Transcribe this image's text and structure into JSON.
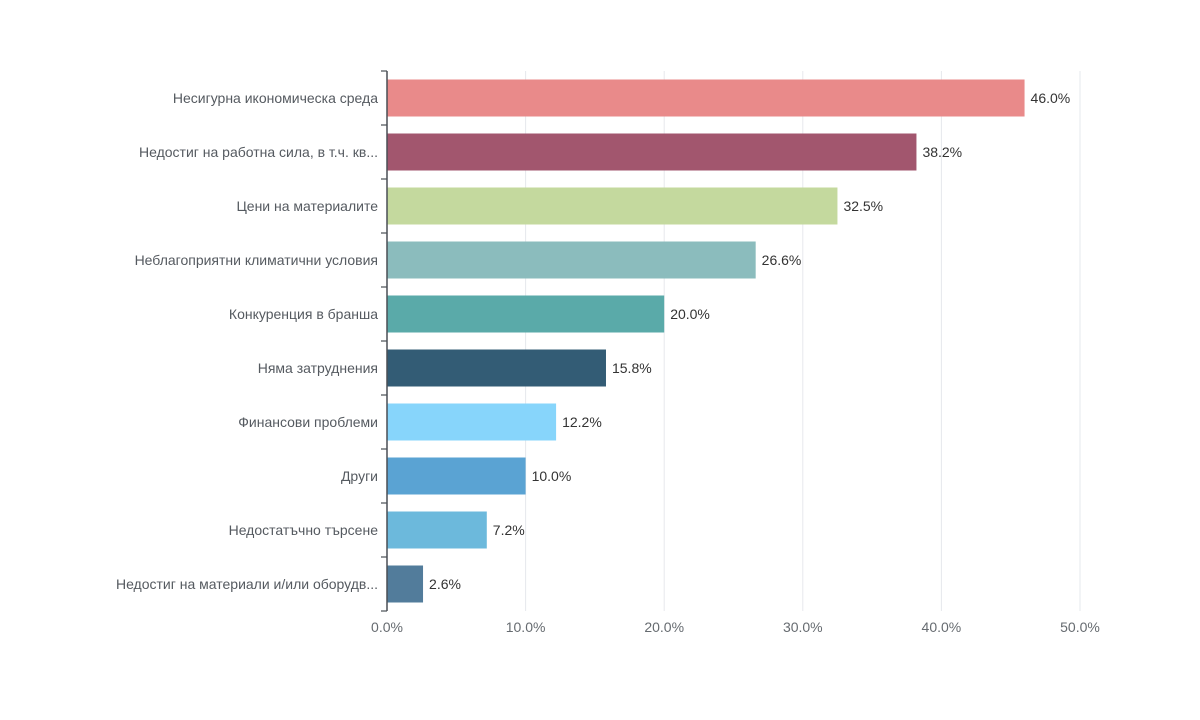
{
  "chart_data": {
    "type": "bar",
    "orientation": "horizontal",
    "categories": [
      "Несигурна икономическа среда",
      "Недостиг на работна сила, в т.ч. кв...",
      "Цени на материалите",
      "Неблагоприятни климатични условия",
      "Конкуренция в бранша",
      "Няма затруднения",
      "Финансови проблеми",
      "Други",
      "Недостатъчно търсене",
      "Недостиг на материали и/или оборудв..."
    ],
    "values": [
      46.0,
      38.2,
      32.5,
      26.6,
      20.0,
      15.8,
      12.2,
      10.0,
      7.2,
      2.6
    ],
    "value_labels": [
      "46.0%",
      "38.2%",
      "32.5%",
      "26.6%",
      "20.0%",
      "15.8%",
      "12.2%",
      "10.0%",
      "7.2%",
      "2.6%"
    ],
    "colors": [
      "#e98a8a",
      "#a2566e",
      "#c4d99e",
      "#8bbcbd",
      "#5aaaa9",
      "#335c75",
      "#87d5fb",
      "#5aa3d3",
      "#6cb9dc",
      "#527c9b"
    ],
    "xlim": [
      0,
      50
    ],
    "xticks": [
      0,
      10,
      20,
      30,
      40,
      50
    ],
    "xtick_labels": [
      "0.0%",
      "10.0%",
      "20.0%",
      "30.0%",
      "40.0%",
      "50.0%"
    ],
    "grid": true,
    "title": "",
    "xlabel": "",
    "ylabel": ""
  }
}
